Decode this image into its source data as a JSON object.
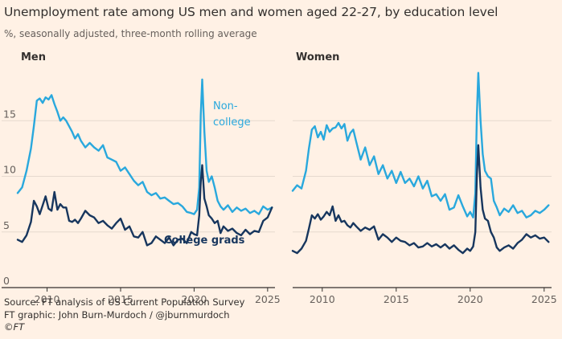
{
  "title": "Unemployment rate among US men and women aged 22-27, by education level",
  "subtitle": "%, seasonally adjusted, three-month rolling average",
  "source_lines": [
    "Source: FT analysis of US Current Population Survey",
    "FT graphic: John Burn-Murdoch / @jburnmurdoch",
    "©FT"
  ],
  "colors": {
    "non_college": "#29a8dd",
    "college": "#17365e",
    "background": "#fff1e5",
    "grid": "#e6d9ce",
    "axis": "#33302e"
  },
  "chart_data": [
    {
      "type": "line",
      "panel": "Men",
      "title": "Men",
      "xlabel": "",
      "ylabel": "",
      "xlim": [
        2008.0,
        2025.5
      ],
      "ylim": [
        0,
        20
      ],
      "yticks": [
        0,
        5,
        10,
        15
      ],
      "xticks": [
        2010,
        2015,
        2020,
        2025
      ],
      "series": [
        {
          "name": "Non-college",
          "label": "Non-\ncollege",
          "x": [
            2008.0,
            2008.3,
            2008.6,
            2008.9,
            2009.1,
            2009.3,
            2009.5,
            2009.7,
            2009.9,
            2010.1,
            2010.3,
            2010.5,
            2010.7,
            2010.9,
            2011.1,
            2011.3,
            2011.5,
            2011.7,
            2011.9,
            2012.1,
            2012.3,
            2012.6,
            2012.9,
            2013.2,
            2013.5,
            2013.8,
            2014.1,
            2014.4,
            2014.7,
            2015.0,
            2015.3,
            2015.6,
            2015.9,
            2016.2,
            2016.5,
            2016.8,
            2017.1,
            2017.4,
            2017.7,
            2018.0,
            2018.3,
            2018.6,
            2018.9,
            2019.2,
            2019.5,
            2019.8,
            2020.0,
            2020.2,
            2020.35,
            2020.45,
            2020.55,
            2020.7,
            2020.85,
            2021.0,
            2021.2,
            2021.4,
            2021.6,
            2021.8,
            2022.0,
            2022.3,
            2022.6,
            2022.9,
            2023.2,
            2023.5,
            2023.8,
            2024.1,
            2024.4,
            2024.7,
            2025.0,
            2025.3
          ],
          "y": [
            8.5,
            9.0,
            10.5,
            12.5,
            14.5,
            16.8,
            17.0,
            16.6,
            17.1,
            16.9,
            17.3,
            16.5,
            15.8,
            15.0,
            15.3,
            15.0,
            14.5,
            14.0,
            13.4,
            13.8,
            13.2,
            12.6,
            13.0,
            12.6,
            12.3,
            12.8,
            11.7,
            11.5,
            11.3,
            10.5,
            10.8,
            10.2,
            9.6,
            9.2,
            9.5,
            8.6,
            8.3,
            8.5,
            8.0,
            8.1,
            7.8,
            7.5,
            7.6,
            7.3,
            6.8,
            6.7,
            6.6,
            7.0,
            9.0,
            15.5,
            18.7,
            14.0,
            10.5,
            9.5,
            10.0,
            9.0,
            7.8,
            7.3,
            7.0,
            7.4,
            6.8,
            7.2,
            6.9,
            7.1,
            6.7,
            6.9,
            6.6,
            7.3,
            7.0,
            7.2
          ]
        },
        {
          "name": "College grads",
          "label": "College grads",
          "x": [
            2008.0,
            2008.3,
            2008.6,
            2008.9,
            2009.1,
            2009.3,
            2009.5,
            2009.7,
            2009.9,
            2010.1,
            2010.3,
            2010.5,
            2010.7,
            2010.9,
            2011.1,
            2011.3,
            2011.5,
            2011.7,
            2011.9,
            2012.1,
            2012.3,
            2012.6,
            2012.9,
            2013.2,
            2013.5,
            2013.8,
            2014.1,
            2014.4,
            2014.7,
            2015.0,
            2015.3,
            2015.6,
            2015.9,
            2016.2,
            2016.5,
            2016.8,
            2017.1,
            2017.4,
            2017.7,
            2018.0,
            2018.3,
            2018.6,
            2018.9,
            2019.2,
            2019.5,
            2019.8,
            2020.0,
            2020.2,
            2020.35,
            2020.45,
            2020.55,
            2020.7,
            2020.85,
            2021.0,
            2021.2,
            2021.4,
            2021.6,
            2021.8,
            2022.0,
            2022.3,
            2022.6,
            2022.9,
            2023.2,
            2023.5,
            2023.8,
            2024.1,
            2024.4,
            2024.7,
            2025.0,
            2025.3
          ],
          "y": [
            4.3,
            4.1,
            4.7,
            5.9,
            7.8,
            7.3,
            6.6,
            7.4,
            8.2,
            7.1,
            6.9,
            8.6,
            7.0,
            7.5,
            7.2,
            7.2,
            6.0,
            5.9,
            6.1,
            5.8,
            6.2,
            6.9,
            6.5,
            6.3,
            5.8,
            6.0,
            5.6,
            5.3,
            5.8,
            6.2,
            5.2,
            5.5,
            4.6,
            4.5,
            5.0,
            3.8,
            4.0,
            4.6,
            4.3,
            4.0,
            4.5,
            3.8,
            4.3,
            4.4,
            4.0,
            5.0,
            4.8,
            4.7,
            6.5,
            9.5,
            11.0,
            8.0,
            7.3,
            6.5,
            6.2,
            5.8,
            6.0,
            4.9,
            5.5,
            5.1,
            5.3,
            4.9,
            4.7,
            5.2,
            4.8,
            5.1,
            5.0,
            6.0,
            6.3,
            7.2
          ]
        }
      ]
    },
    {
      "type": "line",
      "panel": "Women",
      "title": "Women",
      "xlabel": "",
      "ylabel": "",
      "xlim": [
        2008.0,
        2025.5
      ],
      "ylim": [
        0,
        20
      ],
      "xticks": [
        2010,
        2015,
        2020,
        2025
      ],
      "series": [
        {
          "name": "Non-college",
          "x": [
            2008.0,
            2008.3,
            2008.6,
            2008.9,
            2009.1,
            2009.3,
            2009.5,
            2009.7,
            2009.9,
            2010.1,
            2010.3,
            2010.5,
            2010.7,
            2010.9,
            2011.1,
            2011.3,
            2011.5,
            2011.7,
            2011.9,
            2012.1,
            2012.3,
            2012.6,
            2012.9,
            2013.2,
            2013.5,
            2013.8,
            2014.1,
            2014.4,
            2014.7,
            2015.0,
            2015.3,
            2015.6,
            2015.9,
            2016.2,
            2016.5,
            2016.8,
            2017.1,
            2017.4,
            2017.7,
            2018.0,
            2018.3,
            2018.6,
            2018.9,
            2019.2,
            2019.5,
            2019.8,
            2020.0,
            2020.2,
            2020.35,
            2020.45,
            2020.55,
            2020.7,
            2020.85,
            2021.0,
            2021.2,
            2021.4,
            2021.6,
            2021.8,
            2022.0,
            2022.3,
            2022.6,
            2022.9,
            2023.2,
            2023.5,
            2023.8,
            2024.1,
            2024.4,
            2024.7,
            2025.0,
            2025.3
          ],
          "y": [
            8.7,
            9.2,
            8.9,
            10.5,
            12.5,
            14.2,
            14.5,
            13.5,
            14.0,
            13.3,
            14.6,
            14.0,
            14.3,
            14.4,
            14.8,
            14.3,
            14.7,
            13.2,
            13.9,
            14.2,
            13.1,
            11.5,
            12.6,
            11.0,
            11.8,
            10.2,
            11.0,
            9.8,
            10.5,
            9.4,
            10.4,
            9.4,
            9.8,
            9.1,
            10.0,
            8.9,
            9.6,
            8.2,
            8.4,
            7.8,
            8.4,
            7.0,
            7.2,
            8.3,
            7.3,
            6.4,
            6.8,
            6.3,
            8.5,
            15.5,
            19.3,
            15.0,
            12.0,
            10.5,
            10.0,
            9.8,
            7.8,
            7.2,
            6.5,
            7.1,
            6.8,
            7.4,
            6.7,
            6.9,
            6.3,
            6.5,
            6.9,
            6.7,
            7.0,
            7.4
          ]
        },
        {
          "name": "College grads",
          "x": [
            2008.0,
            2008.3,
            2008.6,
            2008.9,
            2009.1,
            2009.3,
            2009.5,
            2009.7,
            2009.9,
            2010.1,
            2010.3,
            2010.5,
            2010.7,
            2010.9,
            2011.1,
            2011.3,
            2011.5,
            2011.7,
            2011.9,
            2012.1,
            2012.3,
            2012.6,
            2012.9,
            2013.2,
            2013.5,
            2013.8,
            2014.1,
            2014.4,
            2014.7,
            2015.0,
            2015.3,
            2015.6,
            2015.9,
            2016.2,
            2016.5,
            2016.8,
            2017.1,
            2017.4,
            2017.7,
            2018.0,
            2018.3,
            2018.6,
            2018.9,
            2019.2,
            2019.5,
            2019.8,
            2020.0,
            2020.2,
            2020.35,
            2020.45,
            2020.55,
            2020.7,
            2020.85,
            2021.0,
            2021.2,
            2021.4,
            2021.6,
            2021.8,
            2022.0,
            2022.3,
            2022.6,
            2022.9,
            2023.2,
            2023.5,
            2023.8,
            2024.1,
            2024.4,
            2024.7,
            2025.0,
            2025.3
          ],
          "y": [
            3.3,
            3.1,
            3.5,
            4.2,
            5.3,
            6.5,
            6.2,
            6.6,
            6.1,
            6.4,
            6.8,
            6.5,
            7.3,
            6.0,
            6.5,
            5.9,
            6.0,
            5.6,
            5.4,
            5.8,
            5.5,
            5.1,
            5.4,
            5.2,
            5.5,
            4.3,
            4.8,
            4.5,
            4.1,
            4.5,
            4.2,
            4.1,
            3.8,
            4.0,
            3.6,
            3.7,
            4.0,
            3.7,
            3.9,
            3.6,
            3.9,
            3.5,
            3.8,
            3.4,
            3.1,
            3.5,
            3.3,
            3.7,
            5.0,
            10.0,
            12.8,
            9.0,
            7.0,
            6.2,
            6.0,
            5.0,
            4.5,
            3.6,
            3.3,
            3.6,
            3.8,
            3.5,
            4.0,
            4.3,
            4.8,
            4.5,
            4.7,
            4.4,
            4.5,
            4.1
          ]
        }
      ]
    }
  ]
}
